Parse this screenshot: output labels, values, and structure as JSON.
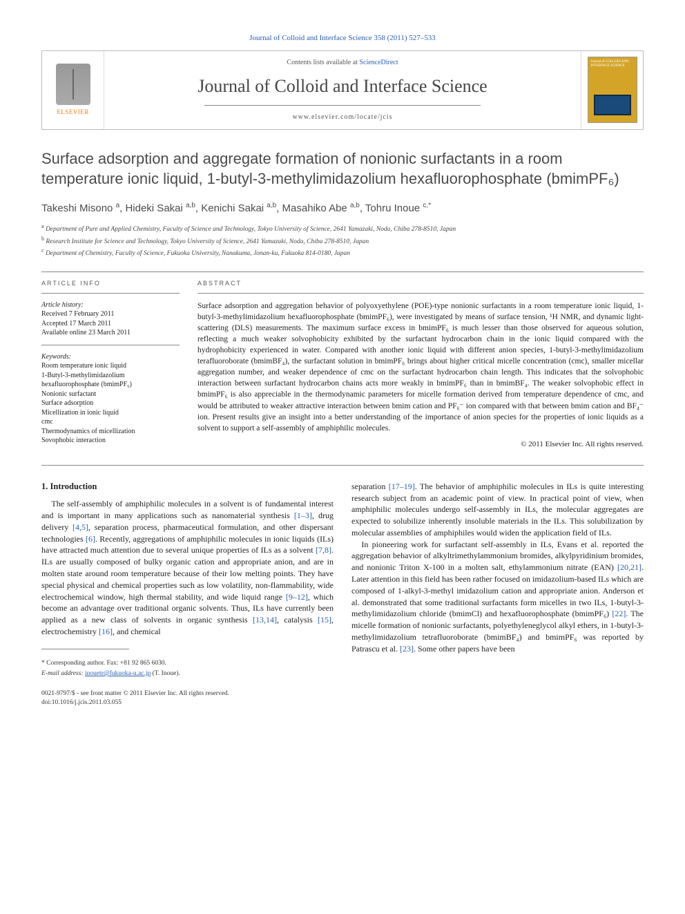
{
  "top_citation": "Journal of Colloid and Interface Science 358 (2011) 527–533",
  "header": {
    "contents_prefix": "Contents lists available at ",
    "contents_link": "ScienceDirect",
    "journal_name": "Journal of Colloid and Interface Science",
    "journal_url": "www.elsevier.com/locate/jcis",
    "publisher_brand": "ELSEVIER",
    "cover_caption": "Journal of COLLOID AND INTERFACE SCIENCE"
  },
  "title": "Surface adsorption and aggregate formation of nonionic surfactants in a room temperature ionic liquid, 1-butyl-3-methylimidazolium hexafluorophosphate (bmimPF₆)",
  "authors_html": "Takeshi Misono <span class='aff'>a</span>, Hideki Sakai <span class='aff'>a,b</span>, Kenichi Sakai <span class='aff'>a,b</span>, Masahiko Abe <span class='aff'>a,b</span>, Tohru Inoue <span class='aff'>c,*</span>",
  "affiliations": [
    {
      "sup": "a",
      "text": "Department of Pure and Applied Chemistry, Faculty of Science and Technology, Tokyo University of Science, 2641 Yamazaki, Noda, Chiba 278-8510, Japan"
    },
    {
      "sup": "b",
      "text": "Research Institute for Science and Technology, Tokyo University of Science, 2641 Yamazaki, Noda, Chiba 278-8510, Japan"
    },
    {
      "sup": "c",
      "text": "Department of Chemistry, Faculty of Science, Fukuoka University, Nanakuma, Jonan-ku, Fukuoka 814-0180, Japan"
    }
  ],
  "article_info": {
    "heading": "ARTICLE INFO",
    "history_label": "Article history:",
    "history": [
      "Received 7 February 2011",
      "Accepted 17 March 2011",
      "Available online 23 March 2011"
    ],
    "keywords_label": "Keywords:",
    "keywords": [
      "Room temperature ionic liquid",
      "1-Butyl-3-methylimidazolium hexafluorophosphate (bmimPF₆)",
      "Nonionic surfactant",
      "Surface adsorption",
      "Micellization in ionic liquid",
      "cmc",
      "Thermodynamics of micellization",
      "Sovophobic interaction"
    ]
  },
  "abstract": {
    "heading": "ABSTRACT",
    "text": "Surface adsorption and aggregation behavior of polyoxyethylene (POE)-type nonionic surfactants in a room temperature ionic liquid, 1-butyl-3-methylimidazolium hexafluorophosphate (bmimPF₆), were investigated by means of surface tension, ¹H NMR, and dynamic light-scattering (DLS) measurements. The maximum surface excess in bmimPF₆ is much lesser than those observed for aqueous solution, reflecting a much weaker solvophobicity exhibited by the surfactant hydrocarbon chain in the ionic liquid compared with the hydrophobicity experienced in water. Compared with another ionic liquid with different anion species, 1-butyl-3-methylimidazolium terafluoroborate (bmimBF₄), the surfactant solution in bmimPF₆ brings about higher critical micelle concentration (cmc), smaller micellar aggregation number, and weaker dependence of cmc on the surfactant hydrocarbon chain length. This indicates that the solvophobic interaction between surfactant hydrocarbon chains acts more weakly in bmimPF₆ than in bmimBF₄. The weaker solvophobic effect in bmimPF₆ is also appreciable in the thermodynamic parameters for micelle formation derived from temperature dependence of cmc, and would be attributed to weaker attractive interaction between bmim cation and PF₆⁻ ion compared with that between bmim cation and BF₄⁻ ion. Present results give an insight into a better understanding of the importance of anion species for the properties of ionic liquids as a solvent to support a self-assembly of amphiphilic molecules.",
    "copyright": "© 2011 Elsevier Inc. All rights reserved."
  },
  "body": {
    "section_heading": "1. Introduction",
    "col1": "The self-assembly of amphiphilic molecules in a solvent is of fundamental interest and is important in many applications such as nanomaterial synthesis <span class='ref'>[1–3]</span>, drug delivery <span class='ref'>[4,5]</span>, separation process, pharmaceutical formulation, and other dispersant technologies <span class='ref'>[6]</span>. Recently, aggregations of amphiphilic molecules in ionic liquids (ILs) have attracted much attention due to several unique properties of ILs as a solvent <span class='ref'>[7,8]</span>. ILs are usually composed of bulky organic cation and appropriate anion, and are in molten state around room temperature because of their low melting points. They have special physical and chemical properties such as low volatility, non-flammability, wide electrochemical window, high thermal stability, and wide liquid range <span class='ref'>[9–12]</span>, which become an advantage over traditional organic solvents. Thus, ILs have currently been applied as a new class of solvents in organic synthesis <span class='ref'>[13,14]</span>, catalysis <span class='ref'>[15]</span>, electrochemistry <span class='ref'>[16]</span>, and chemical",
    "col2a": "separation <span class='ref'>[17–19]</span>. The behavior of amphiphilic molecules in ILs is quite interesting research subject from an academic point of view. In practical point of view, when amphiphilic molecules undergo self-assembly in ILs, the molecular aggregates are expected to solubilize inherently insoluble materials in the ILs. This solubilization by molecular assemblies of amphiphiles would widen the application field of ILs.",
    "col2b": "In pioneering work for surfactant self-assembly in ILs, Evans et al. reported the aggregation behavior of alkyltrimethylammonium bromides, alkylpyridinium bromides, and nonionic Triton X-100 in a molten salt, ethylammonium nitrate (EAN) <span class='ref'>[20,21]</span>. Later attention in this field has been rather focused on imidazolium-based ILs which are composed of 1-alkyl-3-methyl imidazolium cation and appropriate anion. Anderson et al. demonstrated that some traditional surfactants form micelles in two ILs, 1-butyl-3-methylimidazolium chloride (bmimCl) and hexafluorophosphate (bmimPF₆) <span class='ref'>[22]</span>. The micelle formation of nonionic surfactants, polyethyleneglycol alkyl ethers, in 1-butyl-3-methylimidazolium tetrafluoroborate (bmimBF₄) and bmimPF₆ was reported by Patrascu et al. <span class='ref'>[23]</span>. Some other papers have been"
  },
  "footer": {
    "corresponding": "* Corresponding author. Fax: +81 92 865 6030.",
    "email_label": "E-mail address:",
    "email": "inouetr@fukuoka-u.ac.jp",
    "email_attribution": "(T. Inoue).",
    "issn_line": "0021-9797/$ - see front matter © 2011 Elsevier Inc. All rights reserved.",
    "doi": "doi:10.1016/j.jcis.2011.03.055"
  },
  "colors": {
    "link": "#2a5db0",
    "publisher": "#ff7a00",
    "cover_bg": "#d4a429",
    "cover_inset": "#1a4a7a",
    "text_gray": "#4b4b4b"
  }
}
